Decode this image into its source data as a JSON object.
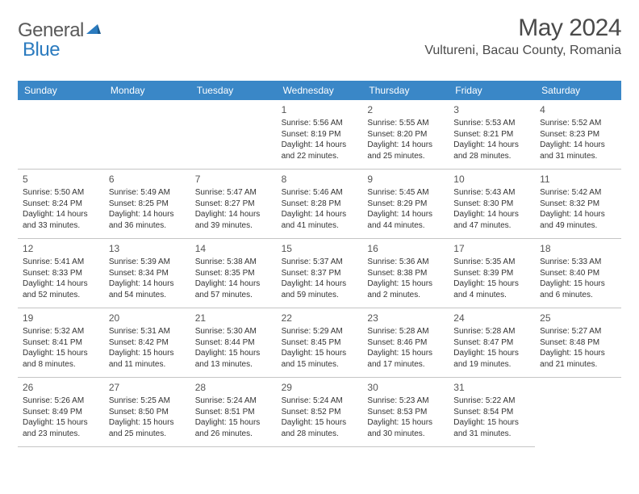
{
  "logo": {
    "text_general": "General",
    "text_blue": "Blue"
  },
  "header": {
    "month_title": "May 2024",
    "location": "Vultureni, Bacau County, Romania"
  },
  "colors": {
    "header_bg": "#3a87c7",
    "header_text": "#ffffff",
    "logo_gray": "#5a5a5a",
    "logo_blue": "#2b7bbf",
    "border": "#c5c5c5",
    "text": "#333333"
  },
  "weekdays": [
    "Sunday",
    "Monday",
    "Tuesday",
    "Wednesday",
    "Thursday",
    "Friday",
    "Saturday"
  ],
  "days": [
    {
      "num": "",
      "sunrise": "",
      "sunset": "",
      "daylight": ""
    },
    {
      "num": "",
      "sunrise": "",
      "sunset": "",
      "daylight": ""
    },
    {
      "num": "",
      "sunrise": "",
      "sunset": "",
      "daylight": ""
    },
    {
      "num": "1",
      "sunrise": "Sunrise: 5:56 AM",
      "sunset": "Sunset: 8:19 PM",
      "daylight": "Daylight: 14 hours and 22 minutes."
    },
    {
      "num": "2",
      "sunrise": "Sunrise: 5:55 AM",
      "sunset": "Sunset: 8:20 PM",
      "daylight": "Daylight: 14 hours and 25 minutes."
    },
    {
      "num": "3",
      "sunrise": "Sunrise: 5:53 AM",
      "sunset": "Sunset: 8:21 PM",
      "daylight": "Daylight: 14 hours and 28 minutes."
    },
    {
      "num": "4",
      "sunrise": "Sunrise: 5:52 AM",
      "sunset": "Sunset: 8:23 PM",
      "daylight": "Daylight: 14 hours and 31 minutes."
    },
    {
      "num": "5",
      "sunrise": "Sunrise: 5:50 AM",
      "sunset": "Sunset: 8:24 PM",
      "daylight": "Daylight: 14 hours and 33 minutes."
    },
    {
      "num": "6",
      "sunrise": "Sunrise: 5:49 AM",
      "sunset": "Sunset: 8:25 PM",
      "daylight": "Daylight: 14 hours and 36 minutes."
    },
    {
      "num": "7",
      "sunrise": "Sunrise: 5:47 AM",
      "sunset": "Sunset: 8:27 PM",
      "daylight": "Daylight: 14 hours and 39 minutes."
    },
    {
      "num": "8",
      "sunrise": "Sunrise: 5:46 AM",
      "sunset": "Sunset: 8:28 PM",
      "daylight": "Daylight: 14 hours and 41 minutes."
    },
    {
      "num": "9",
      "sunrise": "Sunrise: 5:45 AM",
      "sunset": "Sunset: 8:29 PM",
      "daylight": "Daylight: 14 hours and 44 minutes."
    },
    {
      "num": "10",
      "sunrise": "Sunrise: 5:43 AM",
      "sunset": "Sunset: 8:30 PM",
      "daylight": "Daylight: 14 hours and 47 minutes."
    },
    {
      "num": "11",
      "sunrise": "Sunrise: 5:42 AM",
      "sunset": "Sunset: 8:32 PM",
      "daylight": "Daylight: 14 hours and 49 minutes."
    },
    {
      "num": "12",
      "sunrise": "Sunrise: 5:41 AM",
      "sunset": "Sunset: 8:33 PM",
      "daylight": "Daylight: 14 hours and 52 minutes."
    },
    {
      "num": "13",
      "sunrise": "Sunrise: 5:39 AM",
      "sunset": "Sunset: 8:34 PM",
      "daylight": "Daylight: 14 hours and 54 minutes."
    },
    {
      "num": "14",
      "sunrise": "Sunrise: 5:38 AM",
      "sunset": "Sunset: 8:35 PM",
      "daylight": "Daylight: 14 hours and 57 minutes."
    },
    {
      "num": "15",
      "sunrise": "Sunrise: 5:37 AM",
      "sunset": "Sunset: 8:37 PM",
      "daylight": "Daylight: 14 hours and 59 minutes."
    },
    {
      "num": "16",
      "sunrise": "Sunrise: 5:36 AM",
      "sunset": "Sunset: 8:38 PM",
      "daylight": "Daylight: 15 hours and 2 minutes."
    },
    {
      "num": "17",
      "sunrise": "Sunrise: 5:35 AM",
      "sunset": "Sunset: 8:39 PM",
      "daylight": "Daylight: 15 hours and 4 minutes."
    },
    {
      "num": "18",
      "sunrise": "Sunrise: 5:33 AM",
      "sunset": "Sunset: 8:40 PM",
      "daylight": "Daylight: 15 hours and 6 minutes."
    },
    {
      "num": "19",
      "sunrise": "Sunrise: 5:32 AM",
      "sunset": "Sunset: 8:41 PM",
      "daylight": "Daylight: 15 hours and 8 minutes."
    },
    {
      "num": "20",
      "sunrise": "Sunrise: 5:31 AM",
      "sunset": "Sunset: 8:42 PM",
      "daylight": "Daylight: 15 hours and 11 minutes."
    },
    {
      "num": "21",
      "sunrise": "Sunrise: 5:30 AM",
      "sunset": "Sunset: 8:44 PM",
      "daylight": "Daylight: 15 hours and 13 minutes."
    },
    {
      "num": "22",
      "sunrise": "Sunrise: 5:29 AM",
      "sunset": "Sunset: 8:45 PM",
      "daylight": "Daylight: 15 hours and 15 minutes."
    },
    {
      "num": "23",
      "sunrise": "Sunrise: 5:28 AM",
      "sunset": "Sunset: 8:46 PM",
      "daylight": "Daylight: 15 hours and 17 minutes."
    },
    {
      "num": "24",
      "sunrise": "Sunrise: 5:28 AM",
      "sunset": "Sunset: 8:47 PM",
      "daylight": "Daylight: 15 hours and 19 minutes."
    },
    {
      "num": "25",
      "sunrise": "Sunrise: 5:27 AM",
      "sunset": "Sunset: 8:48 PM",
      "daylight": "Daylight: 15 hours and 21 minutes."
    },
    {
      "num": "26",
      "sunrise": "Sunrise: 5:26 AM",
      "sunset": "Sunset: 8:49 PM",
      "daylight": "Daylight: 15 hours and 23 minutes."
    },
    {
      "num": "27",
      "sunrise": "Sunrise: 5:25 AM",
      "sunset": "Sunset: 8:50 PM",
      "daylight": "Daylight: 15 hours and 25 minutes."
    },
    {
      "num": "28",
      "sunrise": "Sunrise: 5:24 AM",
      "sunset": "Sunset: 8:51 PM",
      "daylight": "Daylight: 15 hours and 26 minutes."
    },
    {
      "num": "29",
      "sunrise": "Sunrise: 5:24 AM",
      "sunset": "Sunset: 8:52 PM",
      "daylight": "Daylight: 15 hours and 28 minutes."
    },
    {
      "num": "30",
      "sunrise": "Sunrise: 5:23 AM",
      "sunset": "Sunset: 8:53 PM",
      "daylight": "Daylight: 15 hours and 30 minutes."
    },
    {
      "num": "31",
      "sunrise": "Sunrise: 5:22 AM",
      "sunset": "Sunset: 8:54 PM",
      "daylight": "Daylight: 15 hours and 31 minutes."
    }
  ]
}
